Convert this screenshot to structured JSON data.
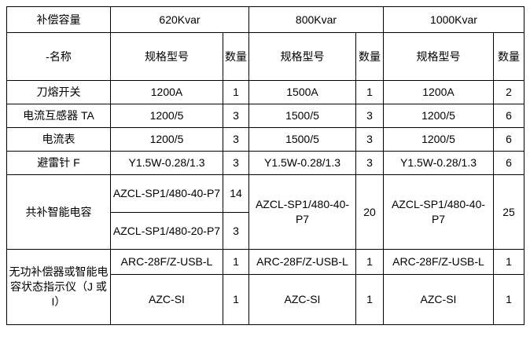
{
  "header": {
    "capacity_label": "补偿容量",
    "capacities": [
      "620Kvar",
      "800Kvar",
      "1000Kvar"
    ],
    "name_label": "-名称",
    "spec_label": "规格型号",
    "qty_label": "数量"
  },
  "rows": [
    {
      "name": "刀熔开关",
      "cells": [
        "1200A",
        "1",
        "1500A",
        "1",
        "1200A",
        "2"
      ]
    },
    {
      "name": "电流互感器 TA",
      "cells": [
        "1200/5",
        "3",
        "1500/5",
        "3",
        "1200/5",
        "6"
      ]
    },
    {
      "name": "电流表",
      "cells": [
        "1200/5",
        "3",
        "1500/5",
        "3",
        "1200/5",
        "6"
      ]
    },
    {
      "name": "避雷针 F",
      "cells": [
        "Y1.5W-0.28/1.3",
        "3",
        "Y1.5W-0.28/1.3",
        "3",
        "Y1.5W-0.28/1.3",
        "6"
      ]
    }
  ],
  "capacitor_section": {
    "name": "共补智能电容",
    "sub_620": [
      {
        "spec": "AZCL-SP1/480-40-P7",
        "qty": "14"
      },
      {
        "spec": "AZCL-SP1/480-20-P7",
        "qty": "3"
      }
    ],
    "c800": {
      "spec": "AZCL-SP1/480-40-P7",
      "qty": "20"
    },
    "c1000": {
      "spec": "AZCL-SP1/480-40-P7",
      "qty": "25"
    }
  },
  "indicator_section": {
    "name": "无功补偿器或智能电容状态指示仪（J 或 I）",
    "rows": [
      {
        "cells": [
          "ARC-28F/Z-USB-L",
          "1",
          "ARC-28F/Z-USB-L",
          "1",
          "ARC-28F/Z-USB-L",
          "1"
        ]
      },
      {
        "cells": [
          "AZC-SI",
          "1",
          "AZC-SI",
          "1",
          "AZC-SI",
          "1"
        ]
      }
    ]
  }
}
